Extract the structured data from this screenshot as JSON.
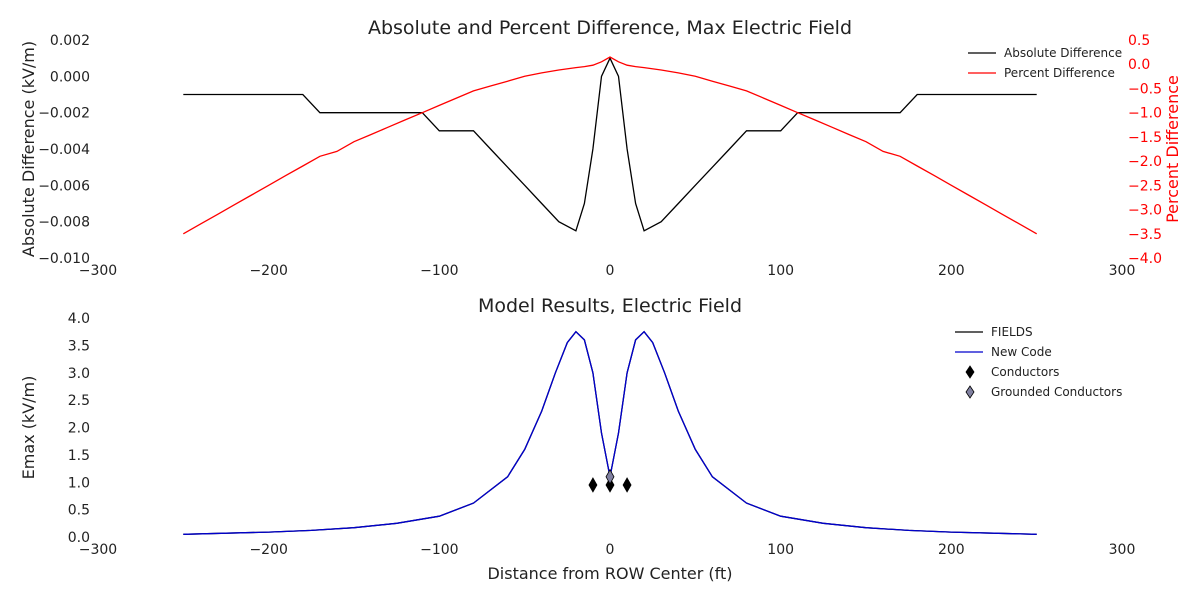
{
  "chart_data": [
    {
      "type": "line",
      "title": "Absolute and Percent Difference, Max Electric Field",
      "xlabel": "",
      "ylabel": "Absolute Difference (kV/m)",
      "y2label": "Percent Difference",
      "xlim": [
        -300,
        300
      ],
      "ylim": [
        -0.01,
        0.002
      ],
      "y2lim": [
        -4.0,
        0.5
      ],
      "xticks": [
        "−300",
        "−200",
        "−100",
        "0",
        "100",
        "200",
        "300"
      ],
      "yticks": [
        "0.002",
        "0.000",
        "−0.002",
        "−0.004",
        "−0.006",
        "−0.008",
        "−0.010"
      ],
      "y2ticks": [
        "0.5",
        "0.0",
        "−0.5",
        "−1.0",
        "−1.5",
        "−2.0",
        "−2.5",
        "−3.0",
        "−3.5",
        "−4.0"
      ],
      "grid": false,
      "legend_position": "top-right",
      "series": [
        {
          "name": "Absolute Difference",
          "color": "#000000",
          "axis": "left",
          "x": [
            -250,
            -240,
            -230,
            -220,
            -210,
            -200,
            -190,
            -180,
            -170,
            -160,
            -150,
            -140,
            -130,
            -120,
            -110,
            -100,
            -90,
            -80,
            -70,
            -60,
            -50,
            -40,
            -30,
            -20,
            -15,
            -10,
            -5,
            0,
            5,
            10,
            15,
            20,
            30,
            40,
            50,
            60,
            70,
            80,
            90,
            100,
            110,
            120,
            130,
            140,
            150,
            160,
            170,
            180,
            190,
            200,
            210,
            220,
            230,
            240,
            250
          ],
          "y": [
            -0.001,
            -0.001,
            -0.001,
            -0.001,
            -0.001,
            -0.001,
            -0.001,
            -0.001,
            -0.002,
            -0.002,
            -0.002,
            -0.002,
            -0.002,
            -0.002,
            -0.002,
            -0.003,
            -0.003,
            -0.003,
            -0.004,
            -0.005,
            -0.006,
            -0.007,
            -0.008,
            -0.0085,
            -0.007,
            -0.004,
            0.0,
            0.001,
            0.0,
            -0.004,
            -0.007,
            -0.0085,
            -0.008,
            -0.007,
            -0.006,
            -0.005,
            -0.004,
            -0.003,
            -0.003,
            -0.003,
            -0.002,
            -0.002,
            -0.002,
            -0.002,
            -0.002,
            -0.002,
            -0.002,
            -0.001,
            -0.001,
            -0.001,
            -0.001,
            -0.001,
            -0.001,
            -0.001,
            -0.001
          ]
        },
        {
          "name": "Percent Difference",
          "color": "#ff0000",
          "axis": "right",
          "x": [
            -250,
            -240,
            -230,
            -220,
            -210,
            -200,
            -190,
            -180,
            -170,
            -160,
            -150,
            -140,
            -130,
            -120,
            -110,
            -100,
            -90,
            -80,
            -70,
            -60,
            -50,
            -40,
            -30,
            -20,
            -15,
            -10,
            -5,
            0,
            5,
            10,
            15,
            20,
            30,
            40,
            50,
            60,
            70,
            80,
            90,
            100,
            110,
            120,
            130,
            140,
            150,
            160,
            170,
            180,
            190,
            200,
            210,
            220,
            230,
            240,
            250
          ],
          "y": [
            -3.5,
            -3.3,
            -3.1,
            -2.9,
            -2.7,
            -2.5,
            -2.3,
            -2.1,
            -1.9,
            -1.8,
            -1.6,
            -1.45,
            -1.3,
            -1.15,
            -1.0,
            -0.85,
            -0.7,
            -0.55,
            -0.45,
            -0.35,
            -0.25,
            -0.18,
            -0.12,
            -0.07,
            -0.05,
            -0.02,
            0.05,
            0.15,
            0.05,
            -0.02,
            -0.05,
            -0.07,
            -0.12,
            -0.18,
            -0.25,
            -0.35,
            -0.45,
            -0.55,
            -0.7,
            -0.85,
            -1.0,
            -1.15,
            -1.3,
            -1.45,
            -1.6,
            -1.8,
            -1.9,
            -2.1,
            -2.3,
            -2.5,
            -2.7,
            -2.9,
            -3.1,
            -3.3,
            -3.5
          ]
        }
      ]
    },
    {
      "type": "line",
      "title": "Model Results, Electric Field",
      "xlabel": "Distance from ROW Center (ft)",
      "ylabel": "Emax (kV/m)",
      "xlim": [
        -300,
        300
      ],
      "ylim": [
        0.0,
        4.0
      ],
      "xticks": [
        "−300",
        "−200",
        "−100",
        "0",
        "100",
        "200",
        "300"
      ],
      "yticks": [
        "4.0",
        "3.5",
        "3.0",
        "2.5",
        "2.0",
        "1.5",
        "1.0",
        "0.5",
        "0.0"
      ],
      "grid": false,
      "legend_position": "top-right",
      "series": [
        {
          "name": "FIELDS",
          "color": "#000000",
          "x": [
            -250,
            -225,
            -200,
            -175,
            -150,
            -125,
            -100,
            -80,
            -60,
            -50,
            -40,
            -32,
            -25,
            -20,
            -15,
            -10,
            -5,
            0,
            5,
            10,
            15,
            20,
            25,
            32,
            40,
            50,
            60,
            80,
            100,
            125,
            150,
            175,
            200,
            225,
            250
          ],
          "y": [
            0.05,
            0.07,
            0.09,
            0.12,
            0.17,
            0.25,
            0.38,
            0.62,
            1.1,
            1.6,
            2.3,
            3.0,
            3.55,
            3.75,
            3.6,
            3.0,
            1.9,
            1.1,
            1.9,
            3.0,
            3.6,
            3.75,
            3.55,
            3.0,
            2.3,
            1.6,
            1.1,
            0.62,
            0.38,
            0.25,
            0.17,
            0.12,
            0.09,
            0.07,
            0.05
          ]
        },
        {
          "name": "New Code",
          "color": "#0000cc",
          "x": [
            -250,
            -225,
            -200,
            -175,
            -150,
            -125,
            -100,
            -80,
            -60,
            -50,
            -40,
            -32,
            -25,
            -20,
            -15,
            -10,
            -5,
            0,
            5,
            10,
            15,
            20,
            25,
            32,
            40,
            50,
            60,
            80,
            100,
            125,
            150,
            175,
            200,
            225,
            250
          ],
          "y": [
            0.05,
            0.07,
            0.09,
            0.12,
            0.17,
            0.25,
            0.38,
            0.62,
            1.1,
            1.6,
            2.3,
            3.0,
            3.55,
            3.75,
            3.6,
            3.0,
            1.9,
            1.1,
            1.9,
            3.0,
            3.6,
            3.75,
            3.55,
            3.0,
            2.3,
            1.6,
            1.1,
            0.62,
            0.38,
            0.25,
            0.17,
            0.12,
            0.09,
            0.07,
            0.05
          ]
        },
        {
          "name": "Conductors",
          "color": "#000000",
          "marker": "diamond",
          "x": [
            -10,
            0,
            10
          ],
          "y": [
            0.95,
            0.95,
            0.95
          ]
        },
        {
          "name": "Grounded Conductors",
          "color": "#8080a0",
          "marker": "diamond",
          "x": [
            0
          ],
          "y": [
            1.1
          ]
        }
      ]
    }
  ]
}
